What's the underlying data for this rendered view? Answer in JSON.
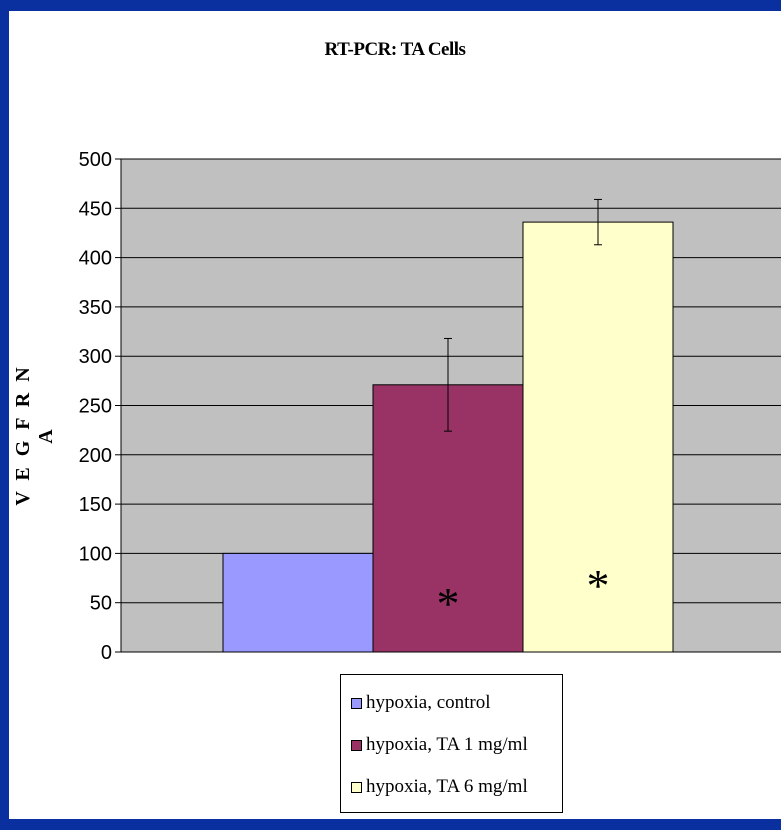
{
  "chart_data": {
    "type": "bar",
    "title": "RT-PCR: TA Cells",
    "ylabel": "V E G F  R N A",
    "xlabel": "",
    "ylim": [
      0,
      500
    ],
    "yticks": [
      0,
      50,
      100,
      150,
      200,
      250,
      300,
      350,
      400,
      450,
      500
    ],
    "grid": true,
    "legend_position": "bottom",
    "plot_background": "#c0c0c0",
    "series": [
      {
        "name": "hypoxia, control",
        "value": 100,
        "error": null,
        "color": "#9999ff",
        "marker": ""
      },
      {
        "name": "hypoxia, TA 1 mg/ml",
        "value": 271,
        "error": 47,
        "color": "#993366",
        "marker": "*"
      },
      {
        "name": "hypoxia, TA 6 mg/ml",
        "value": 436,
        "error": 23,
        "color": "#ffffcc",
        "marker": "*"
      }
    ]
  }
}
